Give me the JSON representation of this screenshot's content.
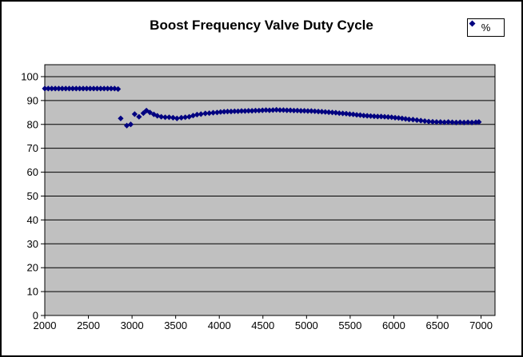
{
  "chart_data": {
    "type": "scatter",
    "title": "Boost Frequency Valve Duty Cycle",
    "xlabel": "",
    "ylabel": "",
    "xlim": [
      2000,
      7160
    ],
    "ylim": [
      0,
      105
    ],
    "xticks": [
      2000,
      2500,
      3000,
      3500,
      4000,
      4500,
      5000,
      5500,
      6000,
      6500,
      7000
    ],
    "yticks": [
      0,
      10,
      20,
      30,
      40,
      50,
      60,
      70,
      80,
      90,
      100
    ],
    "grid": "horizontal-major",
    "colors": {
      "plot_bg": "#C0C0C0",
      "gridline": "#000000",
      "marker": "#000080",
      "chart_bg": "#FFFFFF",
      "border": "#000000"
    },
    "legend": {
      "position": "top-right",
      "entries": [
        {
          "label": "%",
          "marker": "diamond",
          "color": "#000080"
        }
      ]
    },
    "series": [
      {
        "name": "%",
        "marker": "diamond",
        "color": "#000080",
        "points": [
          [
            2000,
            95
          ],
          [
            2040,
            95
          ],
          [
            2080,
            95
          ],
          [
            2120,
            95
          ],
          [
            2160,
            95
          ],
          [
            2200,
            95
          ],
          [
            2240,
            95
          ],
          [
            2280,
            95
          ],
          [
            2320,
            95
          ],
          [
            2360,
            95
          ],
          [
            2400,
            95
          ],
          [
            2440,
            95
          ],
          [
            2480,
            95
          ],
          [
            2520,
            95
          ],
          [
            2560,
            95
          ],
          [
            2600,
            95
          ],
          [
            2640,
            95
          ],
          [
            2680,
            95
          ],
          [
            2720,
            95
          ],
          [
            2760,
            95
          ],
          [
            2800,
            95
          ],
          [
            2840,
            94.8
          ],
          [
            2870,
            82.5
          ],
          [
            2940,
            79.5
          ],
          [
            2985,
            80
          ],
          [
            3030,
            84.3
          ],
          [
            3080,
            83.2
          ],
          [
            3130,
            84.7
          ],
          [
            3165,
            85.8
          ],
          [
            3205,
            85
          ],
          [
            3250,
            84.2
          ],
          [
            3290,
            83.6
          ],
          [
            3335,
            83.2
          ],
          [
            3380,
            83
          ],
          [
            3425,
            83
          ],
          [
            3470,
            82.8
          ],
          [
            3515,
            82.5
          ],
          [
            3565,
            82.8
          ],
          [
            3610,
            83
          ],
          [
            3655,
            83.2
          ],
          [
            3700,
            83.7
          ],
          [
            3745,
            84.1
          ],
          [
            3790,
            84.3
          ],
          [
            3840,
            84.6
          ],
          [
            3885,
            84.7
          ],
          [
            3930,
            84.9
          ],
          [
            3975,
            85
          ],
          [
            4015,
            85.2
          ],
          [
            4055,
            85.3
          ],
          [
            4095,
            85.4
          ],
          [
            4135,
            85.4
          ],
          [
            4175,
            85.5
          ],
          [
            4215,
            85.5
          ],
          [
            4255,
            85.6
          ],
          [
            4295,
            85.6
          ],
          [
            4335,
            85.7
          ],
          [
            4375,
            85.7
          ],
          [
            4415,
            85.8
          ],
          [
            4455,
            85.8
          ],
          [
            4495,
            85.9
          ],
          [
            4535,
            86
          ],
          [
            4575,
            85.9
          ],
          [
            4615,
            86
          ],
          [
            4655,
            86.1
          ],
          [
            4695,
            86
          ],
          [
            4735,
            86
          ],
          [
            4775,
            85.9
          ],
          [
            4815,
            85.9
          ],
          [
            4855,
            85.8
          ],
          [
            4895,
            85.8
          ],
          [
            4935,
            85.7
          ],
          [
            4975,
            85.7
          ],
          [
            5015,
            85.6
          ],
          [
            5055,
            85.6
          ],
          [
            5095,
            85.5
          ],
          [
            5135,
            85.4
          ],
          [
            5175,
            85.3
          ],
          [
            5215,
            85.2
          ],
          [
            5255,
            85.1
          ],
          [
            5295,
            85
          ],
          [
            5335,
            84.9
          ],
          [
            5375,
            84.7
          ],
          [
            5415,
            84.6
          ],
          [
            5455,
            84.5
          ],
          [
            5495,
            84.3
          ],
          [
            5535,
            84.2
          ],
          [
            5575,
            84
          ],
          [
            5615,
            83.9
          ],
          [
            5655,
            83.7
          ],
          [
            5695,
            83.6
          ],
          [
            5735,
            83.5
          ],
          [
            5775,
            83.4
          ],
          [
            5815,
            83.3
          ],
          [
            5855,
            83.3
          ],
          [
            5895,
            83.2
          ],
          [
            5935,
            83.1
          ],
          [
            5975,
            83
          ],
          [
            6015,
            82.8
          ],
          [
            6055,
            82.7
          ],
          [
            6095,
            82.5
          ],
          [
            6135,
            82.3
          ],
          [
            6175,
            82.1
          ],
          [
            6220,
            82
          ],
          [
            6265,
            81.8
          ],
          [
            6310,
            81.6
          ],
          [
            6355,
            81.4
          ],
          [
            6400,
            81.2
          ],
          [
            6445,
            81.1
          ],
          [
            6490,
            81
          ],
          [
            6535,
            81
          ],
          [
            6580,
            80.9
          ],
          [
            6625,
            81
          ],
          [
            6670,
            80.9
          ],
          [
            6715,
            80.8
          ],
          [
            6760,
            80.9
          ],
          [
            6805,
            80.8
          ],
          [
            6850,
            80.9
          ],
          [
            6895,
            80.8
          ],
          [
            6940,
            80.9
          ],
          [
            6975,
            81
          ]
        ]
      }
    ]
  }
}
